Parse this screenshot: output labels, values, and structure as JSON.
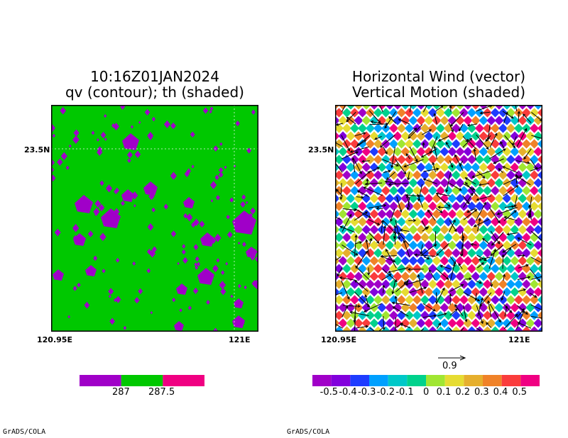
{
  "left_panel": {
    "title_line1": "10:16Z01JAN2024",
    "title_line2": "qv (contour); th (shaded)",
    "y_tick": "23.5N",
    "x_tick_left": "120.95E",
    "x_tick_right": "121E",
    "footer": "GrADS/COLA"
  },
  "right_panel": {
    "title_line1": "Horizontal Wind (vector)",
    "title_line2": "Vertical Motion (shaded)",
    "y_tick": "23.5N",
    "x_tick_left": "120.95E",
    "x_tick_right": "121E",
    "vector_ref": "0.9",
    "footer": "GrADS/COLA"
  },
  "colors": {
    "green": "#00c800",
    "purple": "#a000c8",
    "magenta": "#f00082"
  },
  "chart_data": [
    {
      "type": "heatmap",
      "title": "10:16Z01JAN2024 qv (contour); th (shaded)",
      "colorbar": {
        "colors": [
          "#a000c8",
          "#00c800",
          "#f00082"
        ],
        "labels": [
          "287",
          "287.5"
        ]
      }
    },
    {
      "type": "heatmap",
      "title": "Horizontal Wind (vector) Vertical Motion (shaded)",
      "vector_reference": 0.9,
      "colorbar": {
        "colors": [
          "#a000c8",
          "#8200dc",
          "#1e3cff",
          "#00a0ff",
          "#00c8c8",
          "#00d28c",
          "#a0e632",
          "#e6dc32",
          "#e6af2d",
          "#f08228",
          "#fa3c3c",
          "#f00082"
        ],
        "labels": [
          "-0.5",
          "-0.4",
          "-0.3",
          "-0.2",
          "-0.1",
          "0",
          "0.1",
          "0.2",
          "0.3",
          "0.4",
          "0.5"
        ]
      }
    }
  ]
}
